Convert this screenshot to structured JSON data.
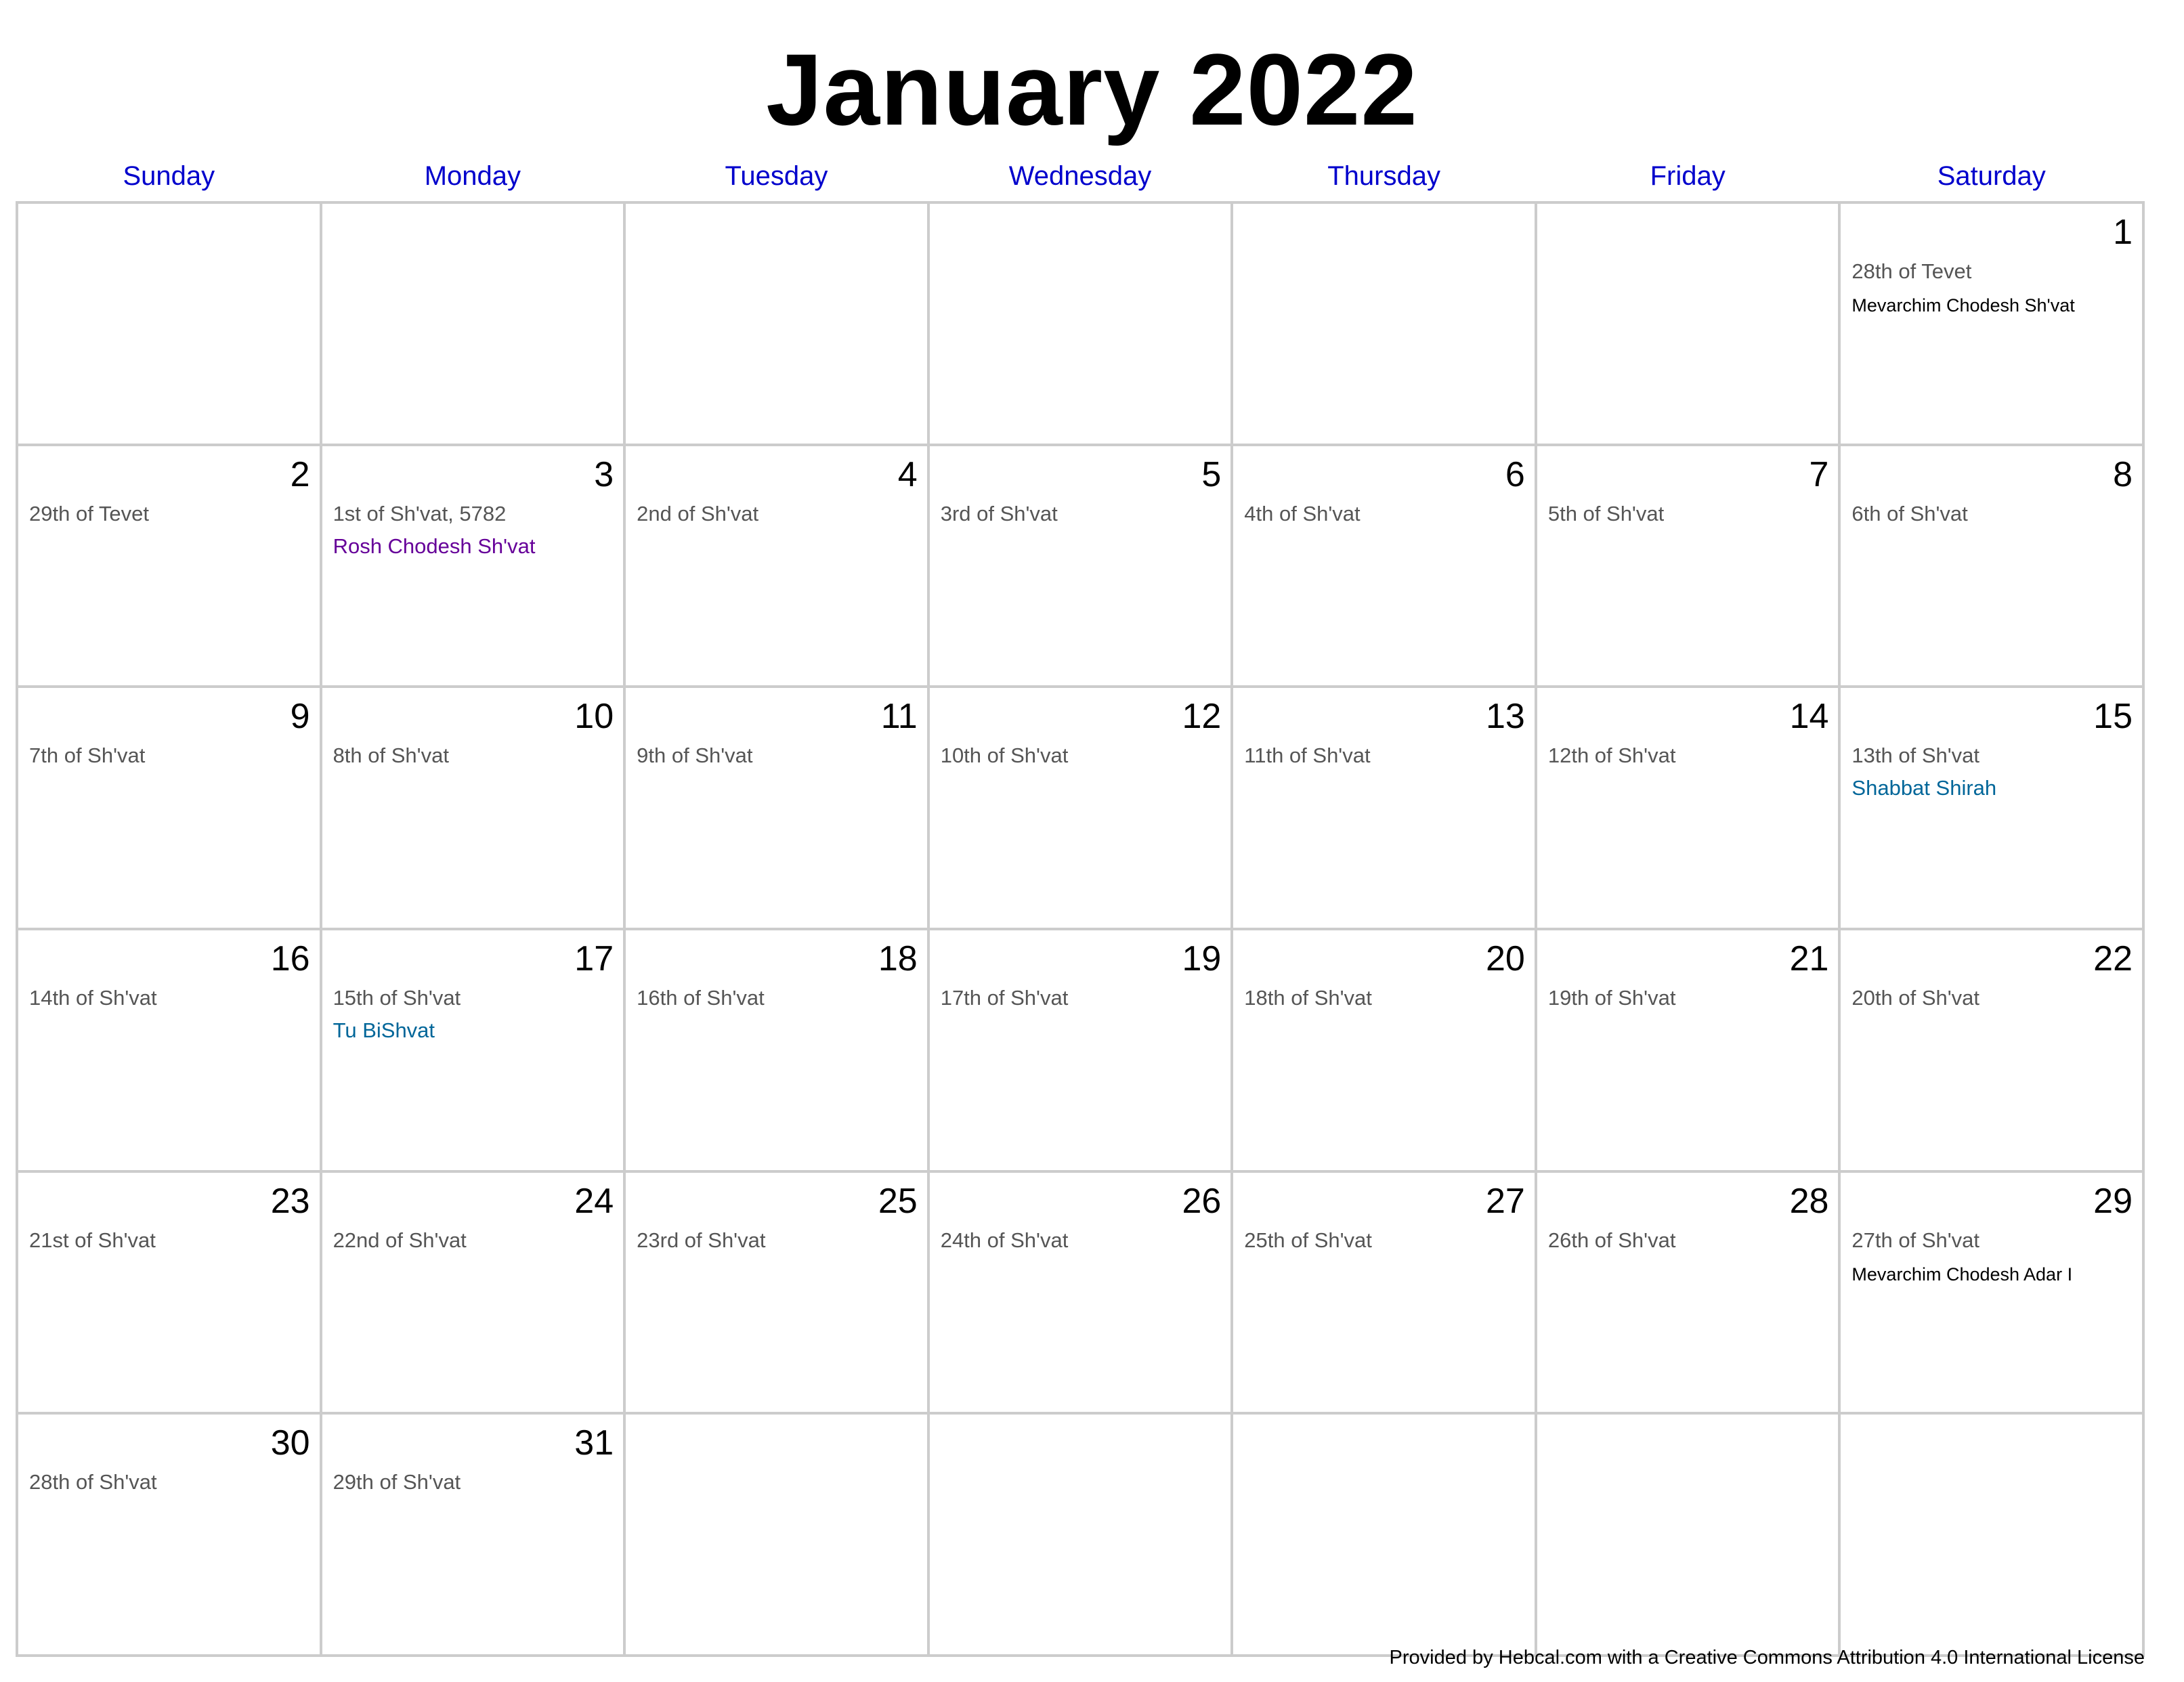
{
  "title": "January 2022",
  "weekdays": [
    "Sunday",
    "Monday",
    "Tuesday",
    "Wednesday",
    "Thursday",
    "Friday",
    "Saturday"
  ],
  "colors": {
    "weekday": "#0000cc",
    "rosh_chodesh": "#660099",
    "holiday": "#006699",
    "mevarchim": "#000000",
    "hebrew_date": "#555555",
    "grid_line": "#cccccc"
  },
  "cells": [
    {
      "day": "",
      "hebrew": "",
      "event": "",
      "event_style": ""
    },
    {
      "day": "",
      "hebrew": "",
      "event": "",
      "event_style": ""
    },
    {
      "day": "",
      "hebrew": "",
      "event": "",
      "event_style": ""
    },
    {
      "day": "",
      "hebrew": "",
      "event": "",
      "event_style": ""
    },
    {
      "day": "",
      "hebrew": "",
      "event": "",
      "event_style": ""
    },
    {
      "day": "",
      "hebrew": "",
      "event": "",
      "event_style": ""
    },
    {
      "day": "1",
      "hebrew": "28th of Tevet",
      "event": "Mevarchim Chodesh Sh'vat",
      "event_style": "mevarchim"
    },
    {
      "day": "2",
      "hebrew": "29th of Tevet",
      "event": "",
      "event_style": ""
    },
    {
      "day": "3",
      "hebrew": "1st of Sh'vat, 5782",
      "event": "Rosh Chodesh Sh'vat",
      "event_style": "rosh_chodesh"
    },
    {
      "day": "4",
      "hebrew": "2nd of Sh'vat",
      "event": "",
      "event_style": ""
    },
    {
      "day": "5",
      "hebrew": "3rd of Sh'vat",
      "event": "",
      "event_style": ""
    },
    {
      "day": "6",
      "hebrew": "4th of Sh'vat",
      "event": "",
      "event_style": ""
    },
    {
      "day": "7",
      "hebrew": "5th of Sh'vat",
      "event": "",
      "event_style": ""
    },
    {
      "day": "8",
      "hebrew": "6th of Sh'vat",
      "event": "",
      "event_style": ""
    },
    {
      "day": "9",
      "hebrew": "7th of Sh'vat",
      "event": "",
      "event_style": ""
    },
    {
      "day": "10",
      "hebrew": "8th of Sh'vat",
      "event": "",
      "event_style": ""
    },
    {
      "day": "11",
      "hebrew": "9th of Sh'vat",
      "event": "",
      "event_style": ""
    },
    {
      "day": "12",
      "hebrew": "10th of Sh'vat",
      "event": "",
      "event_style": ""
    },
    {
      "day": "13",
      "hebrew": "11th of Sh'vat",
      "event": "",
      "event_style": ""
    },
    {
      "day": "14",
      "hebrew": "12th of Sh'vat",
      "event": "",
      "event_style": ""
    },
    {
      "day": "15",
      "hebrew": "13th of Sh'vat",
      "event": "Shabbat Shirah",
      "event_style": "holiday"
    },
    {
      "day": "16",
      "hebrew": "14th of Sh'vat",
      "event": "",
      "event_style": ""
    },
    {
      "day": "17",
      "hebrew": "15th of Sh'vat",
      "event": "Tu BiShvat",
      "event_style": "holiday"
    },
    {
      "day": "18",
      "hebrew": "16th of Sh'vat",
      "event": "",
      "event_style": ""
    },
    {
      "day": "19",
      "hebrew": "17th of Sh'vat",
      "event": "",
      "event_style": ""
    },
    {
      "day": "20",
      "hebrew": "18th of Sh'vat",
      "event": "",
      "event_style": ""
    },
    {
      "day": "21",
      "hebrew": "19th of Sh'vat",
      "event": "",
      "event_style": ""
    },
    {
      "day": "22",
      "hebrew": "20th of Sh'vat",
      "event": "",
      "event_style": ""
    },
    {
      "day": "23",
      "hebrew": "21st of Sh'vat",
      "event": "",
      "event_style": ""
    },
    {
      "day": "24",
      "hebrew": "22nd of Sh'vat",
      "event": "",
      "event_style": ""
    },
    {
      "day": "25",
      "hebrew": "23rd of Sh'vat",
      "event": "",
      "event_style": ""
    },
    {
      "day": "26",
      "hebrew": "24th of Sh'vat",
      "event": "",
      "event_style": ""
    },
    {
      "day": "27",
      "hebrew": "25th of Sh'vat",
      "event": "",
      "event_style": ""
    },
    {
      "day": "28",
      "hebrew": "26th of Sh'vat",
      "event": "",
      "event_style": ""
    },
    {
      "day": "29",
      "hebrew": "27th of Sh'vat",
      "event": "Mevarchim Chodesh Adar I",
      "event_style": "mevarchim"
    },
    {
      "day": "30",
      "hebrew": "28th of Sh'vat",
      "event": "",
      "event_style": ""
    },
    {
      "day": "31",
      "hebrew": "29th of Sh'vat",
      "event": "",
      "event_style": ""
    },
    {
      "day": "",
      "hebrew": "",
      "event": "",
      "event_style": ""
    },
    {
      "day": "",
      "hebrew": "",
      "event": "",
      "event_style": ""
    },
    {
      "day": "",
      "hebrew": "",
      "event": "",
      "event_style": ""
    },
    {
      "day": "",
      "hebrew": "",
      "event": "",
      "event_style": ""
    },
    {
      "day": "",
      "hebrew": "",
      "event": "",
      "event_style": ""
    }
  ],
  "footer": "Provided by Hebcal.com with a Creative Commons Attribution 4.0 International License"
}
